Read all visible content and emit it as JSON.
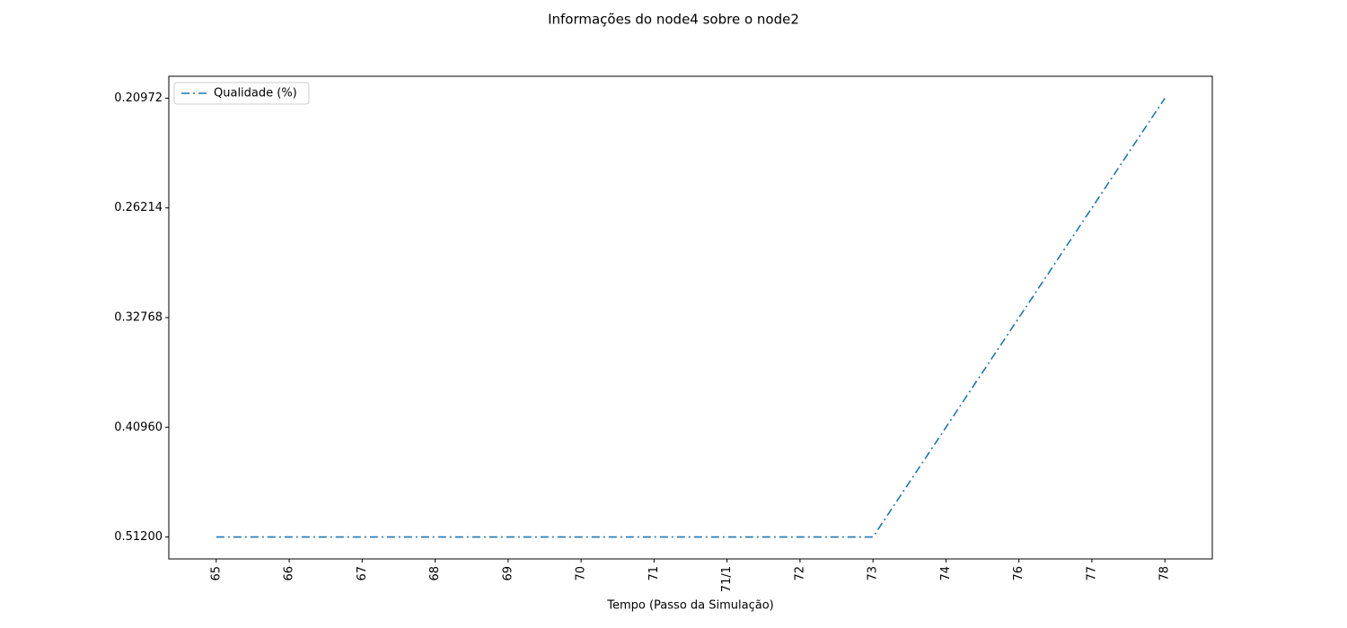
{
  "chart_data": {
    "type": "line",
    "title": "Informações do node4 sobre o node2",
    "xlabel": "Tempo (Passo da Simulação)",
    "categories": [
      "65",
      "66",
      "67",
      "68",
      "69",
      "70",
      "71",
      "71/1",
      "72",
      "73",
      "74",
      "76",
      "77",
      "78"
    ],
    "yticks": [
      {
        "value": 0.512,
        "label": "0.51200"
      },
      {
        "value": 0.4096,
        "label": "0.40960"
      },
      {
        "value": 0.32768,
        "label": "0.32768"
      },
      {
        "value": 0.26214,
        "label": "0.26214"
      },
      {
        "value": 0.20972,
        "label": "0.20972"
      }
    ],
    "series": [
      {
        "name": "Qualidade (%)",
        "color": "#1f77b4",
        "linestyle": "dashdot",
        "values": [
          0.512,
          0.512,
          0.512,
          0.512,
          0.512,
          0.512,
          0.512,
          0.512,
          0.512,
          0.512,
          0.4096,
          0.32768,
          0.26214,
          0.20972
        ]
      }
    ],
    "legend": "upper left"
  }
}
